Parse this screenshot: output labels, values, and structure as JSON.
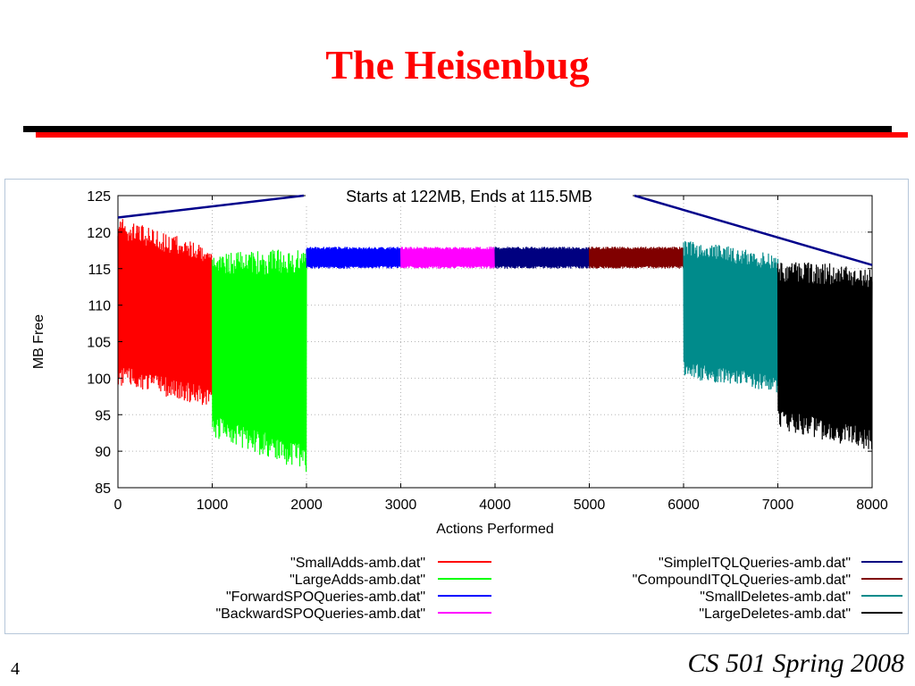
{
  "slide": {
    "title": "The Heisenbug",
    "number": "4",
    "course": "CS 501 Spring 2008",
    "title_color": "#ff0000",
    "rule_colors": [
      "#000000",
      "#ff0000"
    ]
  },
  "chart_data": {
    "type": "line",
    "title": "",
    "xlabel": "Actions Performed",
    "ylabel": "MB Free",
    "xlim": [
      0,
      8000
    ],
    "ylim": [
      85,
      125
    ],
    "xticks": [
      0,
      1000,
      2000,
      3000,
      4000,
      5000,
      6000,
      7000,
      8000
    ],
    "yticks": [
      85,
      90,
      95,
      100,
      105,
      110,
      115,
      120,
      125
    ],
    "grid": true,
    "legend_position": "bottom",
    "annotation": {
      "text": "Starts at 122MB, Ends at 115.5MB",
      "start": {
        "x": 0,
        "y": 122
      },
      "end": {
        "x": 8000,
        "y": 115.5
      },
      "color": "#00008b"
    },
    "series": [
      {
        "name": "\"SmallAdds-amb.dat\"",
        "color": "#ff0000",
        "x_range": [
          0,
          1000
        ],
        "upper": [
          122,
          118
        ],
        "lower": [
          99,
          96
        ]
      },
      {
        "name": "\"LargeAdds-amb.dat\"",
        "color": "#00ff00",
        "x_range": [
          1000,
          2000
        ],
        "upper": [
          117,
          118
        ],
        "lower": [
          92,
          87
        ]
      },
      {
        "name": "\"ForwardSPOQueries-amb.dat\"",
        "color": "#0000ff",
        "x_range": [
          2000,
          3000
        ],
        "upper": [
          118,
          118
        ],
        "lower": [
          115,
          115
        ]
      },
      {
        "name": "\"BackwardSPOQueries-amb.dat\"",
        "color": "#ff00ff",
        "x_range": [
          3000,
          4000
        ],
        "upper": [
          118,
          118
        ],
        "lower": [
          115,
          115
        ]
      },
      {
        "name": "\"SimpleITQLQueries-amb.dat\"",
        "color": "#000080",
        "x_range": [
          4000,
          5000
        ],
        "upper": [
          118,
          118
        ],
        "lower": [
          115,
          115
        ]
      },
      {
        "name": "\"CompoundITQLQueries-amb.dat\"",
        "color": "#800000",
        "x_range": [
          5000,
          6000
        ],
        "upper": [
          118,
          118
        ],
        "lower": [
          115,
          115
        ]
      },
      {
        "name": "\"SmallDeletes-amb.dat\"",
        "color": "#008b8b",
        "x_range": [
          6000,
          7000
        ],
        "upper": [
          119,
          117
        ],
        "lower": [
          100,
          98
        ]
      },
      {
        "name": "\"LargeDeletes-amb.dat\"",
        "color": "#000000",
        "x_range": [
          7000,
          8000
        ],
        "upper": [
          116,
          115.5
        ],
        "lower": [
          93,
          90
        ]
      }
    ]
  }
}
